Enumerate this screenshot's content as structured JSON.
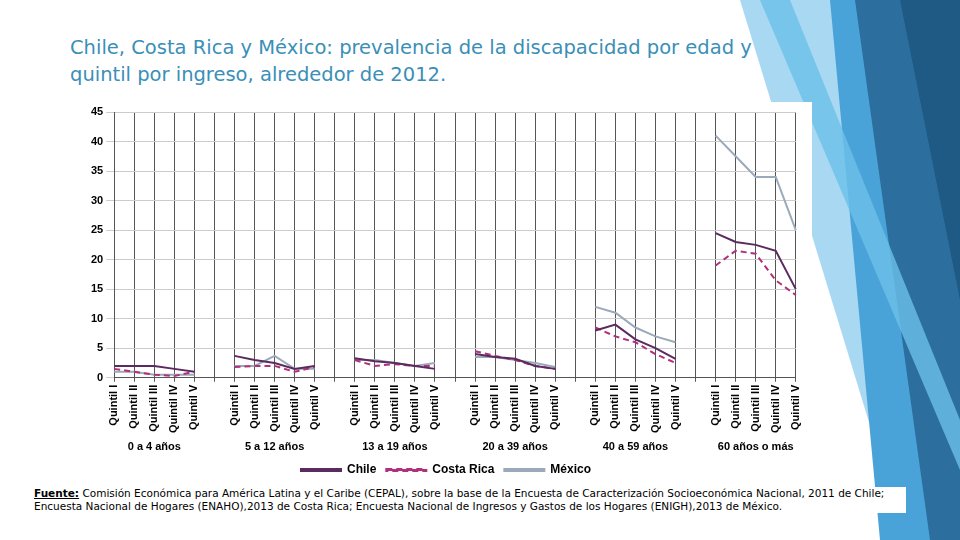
{
  "title": "Chile, Costa Rica y México: prevalencia de la discapacidad por edad y quintil por ingreso, alrededor de 2012.",
  "source_label": "Fuente:",
  "source": "Comisión Económica para América Latina y el Caribe (CEPAL), sobre la base de la Encuesta de Caracterización Socioeconómica Nacional, 2011 de Chile; Encuesta Nacional de Hogares (ENAHO),2013 de Costa Rica; Encuesta Nacional de Ingresos y Gastos de los Hogares (ENIGH),2013 de México.",
  "chart_data": {
    "type": "line",
    "categories": [
      "Quintil I",
      "Quintil II",
      "Quintil III",
      "Quintil IV",
      "Quintil V",
      null,
      "Quintil I",
      "Quintil II",
      "Quintil III",
      "Quintil IV",
      "Quintil V",
      null,
      "Quintil I",
      "Quintil II",
      "Quintil III",
      "Quintil IV",
      "Quintil V",
      null,
      "Quintil I",
      "Quintil II",
      "Quintil III",
      "Quintil IV",
      "Quintil V",
      null,
      "Quintil I",
      "Quintil II",
      "Quintil III",
      "Quintil IV",
      "Quintil V",
      null,
      "Quintil I",
      "Quintil II",
      "Quintil III",
      "Quintil IV",
      "Quintil V"
    ],
    "groups": [
      "0 a 4 años",
      "5 a 12 años",
      "13 a 19 años",
      "20 a 39 años",
      "40 a 59 años",
      "60 años o más"
    ],
    "series": [
      {
        "name": "Chile",
        "color": "#5b2a5e",
        "line_style": "solid",
        "values": [
          2,
          2,
          2,
          1.5,
          1,
          null,
          3.7,
          3,
          2.5,
          1.5,
          2,
          null,
          3.3,
          2.8,
          2.5,
          2,
          1.5,
          null,
          4,
          3.5,
          3.2,
          2,
          1.5,
          null,
          8,
          9,
          6.5,
          5,
          3.2,
          null,
          24.5,
          23,
          22.5,
          21.5,
          15
        ]
      },
      {
        "name": "Costa Rica",
        "color": "#b0307a",
        "line_style": "dashed",
        "values": [
          1.5,
          1,
          0.5,
          0.3,
          1,
          null,
          1.8,
          2,
          2,
          1,
          1.8,
          null,
          3,
          2,
          2.3,
          2,
          2,
          null,
          4.5,
          3.7,
          3,
          2,
          1.5,
          null,
          8.5,
          7,
          6,
          4,
          2.5,
          null,
          19,
          21.5,
          21,
          16.5,
          14
        ]
      },
      {
        "name": "México",
        "color": "#9aaabb",
        "line_style": "solid",
        "values": [
          1,
          1,
          0.5,
          0.5,
          0.5,
          null,
          2,
          2,
          3.7,
          1.5,
          1.5,
          null,
          3,
          3,
          2.5,
          2,
          2.5,
          null,
          3.5,
          3.5,
          3,
          2.5,
          1.8,
          null,
          12,
          11,
          8.5,
          7,
          6,
          null,
          41,
          37.5,
          34,
          34,
          25
        ]
      }
    ],
    "ylim": [
      0,
      45
    ],
    "yticks": [
      0,
      5,
      10,
      15,
      20,
      25,
      30,
      35,
      40,
      45
    ],
    "grid": true,
    "legend": "bottom"
  }
}
